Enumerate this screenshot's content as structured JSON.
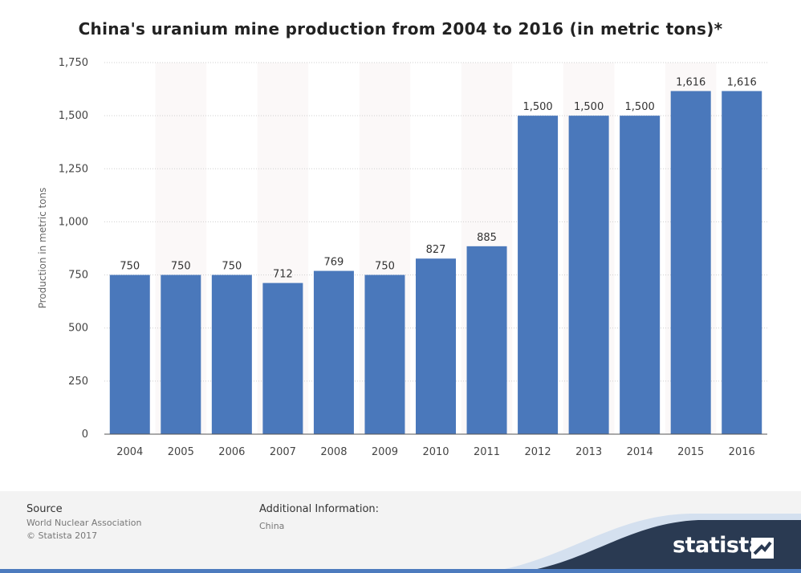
{
  "chart_data": {
    "type": "bar",
    "title": "China's uranium mine production from 2004 to 2016 (in metric tons)*",
    "xlabel": "",
    "ylabel": "Production in metric tons",
    "categories": [
      "2004",
      "2005",
      "2006",
      "2007",
      "2008",
      "2009",
      "2010",
      "2011",
      "2012",
      "2013",
      "2014",
      "2015",
      "2016"
    ],
    "values": [
      750,
      750,
      750,
      712,
      769,
      750,
      827,
      885,
      1500,
      1500,
      1500,
      1616,
      1616
    ],
    "value_labels": [
      "750",
      "750",
      "750",
      "712",
      "769",
      "750",
      "827",
      "885",
      "1,500",
      "1,500",
      "1,500",
      "1,616",
      "1,616"
    ],
    "ylim": [
      0,
      1750
    ],
    "y_ticks": [
      0,
      250,
      500,
      750,
      1000,
      1250,
      1500,
      1750
    ],
    "y_tick_labels": [
      "0",
      "250",
      "500",
      "750",
      "1,000",
      "1,250",
      "1,500",
      "1,750"
    ],
    "grid": true,
    "legend": "none",
    "bar_color": "#4a78bb"
  },
  "footer": {
    "source_heading": "Source",
    "source_lines": [
      "World Nuclear Association",
      "© Statista 2017"
    ],
    "additional_heading": "Additional Information:",
    "additional_lines": [
      "China"
    ],
    "brand": "statista"
  }
}
